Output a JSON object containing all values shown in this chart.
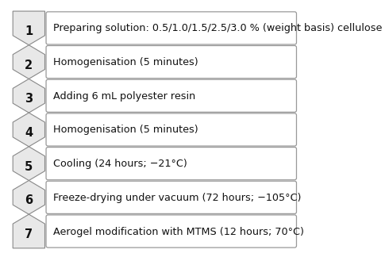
{
  "steps": [
    {
      "num": "1",
      "text": "Preparing solution: 0.5/1.0/1.5/2.5/3.0 % (weight basis) cellulose"
    },
    {
      "num": "2",
      "text": "Homogenisation (5 minutes)"
    },
    {
      "num": "3",
      "text": "Adding 6 mL polyester resin"
    },
    {
      "num": "4",
      "text": "Homogenisation (5 minutes)"
    },
    {
      "num": "5",
      "text": "Cooling (24 hours; −21°C)"
    },
    {
      "num": "6",
      "text": "Freeze-drying under vacuum (72 hours; −105°C)"
    },
    {
      "num": "7",
      "text": "Aerogel modification with MTMS (12 hours; 70°C)"
    }
  ],
  "bg_color": "#ffffff",
  "box_facecolor": "#ffffff",
  "box_edgecolor": "#999999",
  "chevron_facecolor": "#e8e8e8",
  "chevron_edgecolor": "#888888",
  "text_color": "#111111",
  "num_color": "#111111",
  "text_fontsize": 9.2,
  "num_fontsize": 10.5
}
